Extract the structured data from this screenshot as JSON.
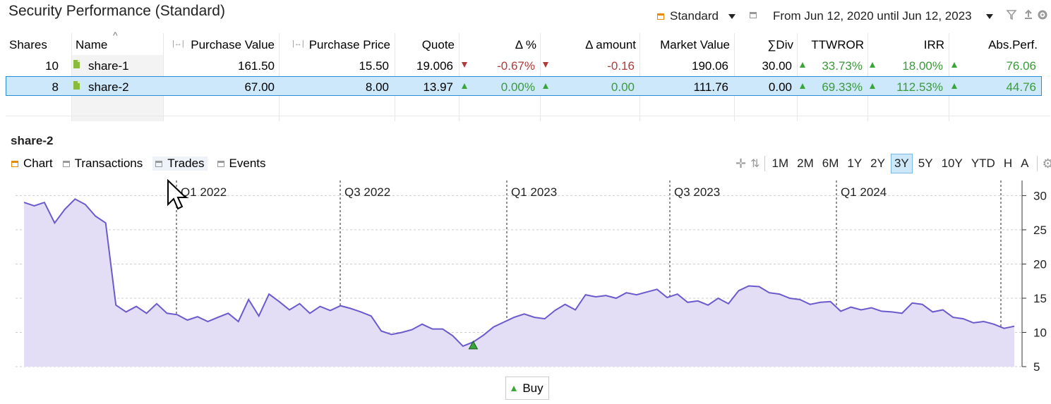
{
  "header": {
    "title": "Security Performance (Standard)",
    "view_label": "Standard",
    "period_label": "From Jun 12, 2020 until Jun 12, 2023"
  },
  "table": {
    "columns": [
      "Shares",
      "Name",
      "Purchase Value",
      "Purchase Price",
      "Quote",
      "Δ %",
      "Δ amount",
      "Market Value",
      "∑Div",
      "TTWROR",
      "IRR",
      "Abs.Perf."
    ],
    "rows": [
      {
        "shares": "10",
        "name": "share-1",
        "purchase_value": "161.50",
        "purchase_price": "15.50",
        "quote": "19.006",
        "delta_pct": "-0.67%",
        "delta_amount": "-0.16",
        "market_value": "190.06",
        "div": "30.00",
        "ttwror": "33.73%",
        "irr": "18.00%",
        "abs_perf": "76.06",
        "trend": "down"
      },
      {
        "shares": "8",
        "name": "share-2",
        "purchase_value": "67.00",
        "purchase_price": "8.00",
        "quote": "13.97",
        "delta_pct": "0.00%",
        "delta_amount": "0.00",
        "market_value": "111.76",
        "div": "0.00",
        "ttwror": "69.33%",
        "irr": "112.53%",
        "abs_perf": "44.76",
        "trend": "up",
        "selected": true
      }
    ]
  },
  "detail": {
    "security_name": "share-2",
    "tabs": [
      "Chart",
      "Transactions",
      "Trades",
      "Events"
    ],
    "ranges": [
      "1M",
      "2M",
      "6M",
      "1Y",
      "2Y",
      "3Y",
      "5Y",
      "10Y",
      "YTD",
      "H",
      "A"
    ],
    "active_range": "3Y",
    "legend_buy": "Buy"
  },
  "chart_data": {
    "type": "area",
    "x_tick_labels": [
      "Q1 2022",
      "Q3 2022",
      "Q1 2023",
      "Q3 2023",
      "Q1 2024"
    ],
    "y_ticks": [
      5,
      10,
      15,
      20,
      25,
      30
    ],
    "ylim": [
      5,
      32
    ],
    "grid": true,
    "series": [
      {
        "name": "share-2",
        "values": [
          29,
          28.5,
          29,
          26,
          28,
          29.5,
          28.7,
          27,
          26,
          14,
          13,
          13.8,
          12.8,
          14.2,
          12.8,
          12.6,
          11.8,
          12.3,
          11.6,
          12.2,
          12.8,
          11.6,
          14.8,
          12.4,
          15.6,
          14.5,
          13.3,
          14.2,
          12.8,
          13.8,
          13.2,
          13.9,
          13.5,
          13.0,
          12.4,
          10.2,
          9.7,
          10,
          10.4,
          11.2,
          10.5,
          10.5,
          9.5,
          8,
          8.6,
          9.6,
          10.8,
          11.5,
          12.2,
          12.7,
          12.2,
          12.0,
          13.2,
          14.1,
          13.3,
          15.5,
          15.2,
          15.4,
          15.0,
          15.8,
          15.5,
          15.9,
          16.3,
          15.1,
          15.6,
          14.4,
          14.6,
          14.0,
          15.0,
          14.2,
          16.1,
          16.8,
          16.7,
          15.8,
          15.6,
          15.0,
          14.8,
          14.1,
          14.4,
          14.5,
          13.1,
          13.7,
          13.3,
          13.6,
          13.1,
          13.0,
          12.8,
          14.3,
          14.1,
          13.0,
          13.3,
          12.2,
          12.0,
          11.4,
          11.6,
          11.2,
          10.6,
          10.9
        ]
      }
    ],
    "markers": [
      {
        "label": "Buy",
        "index": 44,
        "value": 8
      }
    ],
    "crosshair_label": ""
  },
  "colors": {
    "line": "#6a5acd",
    "fill": "#e3def5",
    "up": "#3aa63a",
    "down": "#b33a3a",
    "selection": "#cde8fb",
    "accent": "#e58a00"
  }
}
